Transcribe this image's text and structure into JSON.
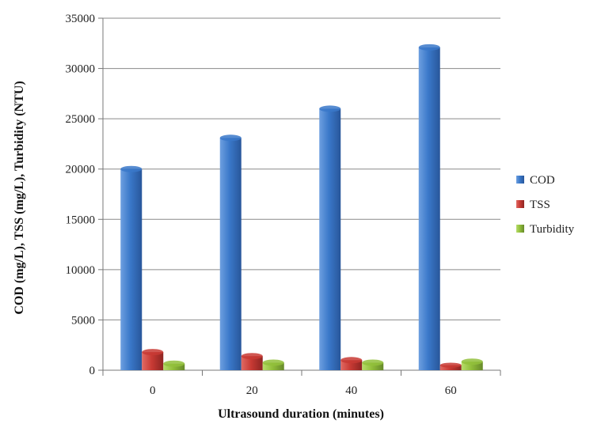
{
  "chart_data": {
    "type": "bar",
    "categories": [
      "0",
      "20",
      "40",
      "60"
    ],
    "series": [
      {
        "name": "COD",
        "values": [
          20000,
          23100,
          26000,
          32100
        ],
        "color": "#3a78c9"
      },
      {
        "name": "TSS",
        "values": [
          1800,
          1400,
          1000,
          500
        ],
        "color": "#c83a34"
      },
      {
        "name": "Turbidity",
        "values": [
          650,
          750,
          750,
          850
        ],
        "color": "#92bf3b"
      }
    ],
    "title": "",
    "xlabel": "Ultrasound duration (minutes)",
    "ylabel": "COD (mg/L), TSS (mg/L), Turbidity (NTU)",
    "ylim": [
      0,
      35000
    ],
    "yticks": [
      "0",
      "5000",
      "10000",
      "15000",
      "20000",
      "25000",
      "30000",
      "35000"
    ],
    "grid": true,
    "legend": "right"
  }
}
